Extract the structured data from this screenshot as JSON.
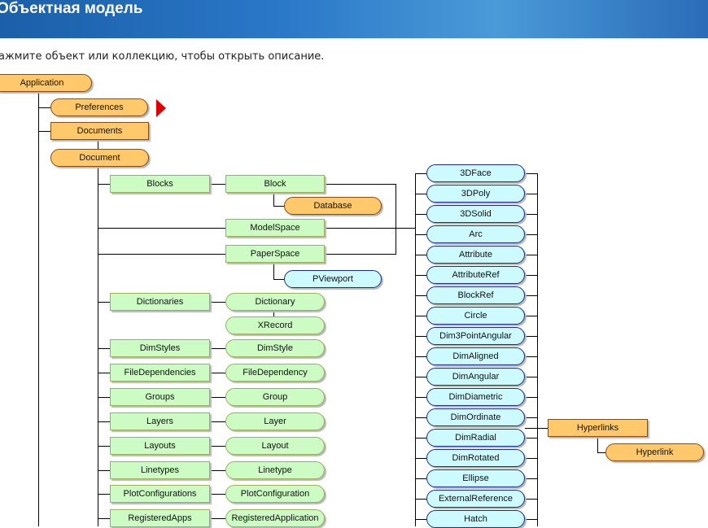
{
  "header": {
    "title": "Объектная модель"
  },
  "hint": "ажмите объект или коллекцию, чтобы открыть описание.",
  "colors": {
    "object": "#ffc96b",
    "collection_green": "#ccfcc4",
    "entity": "#ccfaff",
    "arrow": "#e00000"
  },
  "expand_arrow_icon": "red-triangle-right",
  "top_nodes": [
    "Application",
    "Preferences",
    "Documents",
    "Document",
    "Database",
    "PViewport"
  ],
  "document_children": [
    {
      "collection": "Blocks",
      "object": "Block"
    },
    {
      "collection": "",
      "object": "ModelSpace"
    },
    {
      "collection": "",
      "object": "PaperSpace"
    },
    {
      "collection": "Dictionaries",
      "object": "Dictionary"
    },
    {
      "collection": "",
      "object": "XRecord"
    },
    {
      "collection": "DimStyles",
      "object": "DimStyle"
    },
    {
      "collection": "FileDependencies",
      "object": "FileDependency"
    },
    {
      "collection": "Groups",
      "object": "Group"
    },
    {
      "collection": "Layers",
      "object": "Layer"
    },
    {
      "collection": "Layouts",
      "object": "Layout"
    },
    {
      "collection": "Linetypes",
      "object": "Linetype"
    },
    {
      "collection": "PlotConfigurations",
      "object": "PlotConfiguration"
    },
    {
      "collection": "RegisteredApps",
      "object": "RegisteredApplication"
    }
  ],
  "entities": [
    "3DFace",
    "3DPoly",
    "3DSolid",
    "Arc",
    "Attribute",
    "AttributeRef",
    "BlockRef",
    "Circle",
    "Dim3PointAngular",
    "DimAligned",
    "DimAngular",
    "DimDiametric",
    "DimOrdinate",
    "DimRadial",
    "DimRotated",
    "Ellipse",
    "ExternalReference",
    "Hatch"
  ],
  "hyperlinks": {
    "collection": "Hyperlinks",
    "object": "Hyperlink"
  }
}
